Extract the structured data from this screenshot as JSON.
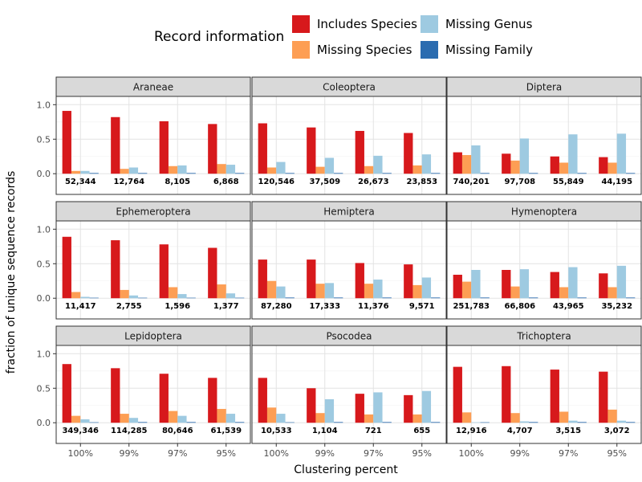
{
  "chart_data": {
    "type": "bar",
    "layout": "facet grid 3x3",
    "xlabel": "Clustering percent",
    "ylabel": "fraction of unique sequence records",
    "ylim": [
      -0.3,
      1.12
    ],
    "yticks": [
      0.0,
      0.5,
      1.0
    ],
    "y_tick_labels": [
      "0.0",
      "0.5",
      "1.0"
    ],
    "categories": [
      "100%",
      "99%",
      "97%",
      "95%"
    ],
    "legend": {
      "title": "Record information",
      "position": "top",
      "entries": [
        {
          "name": "Includes Species",
          "color": "#d7191c"
        },
        {
          "name": "Missing Genus",
          "color": "#9ecae1"
        },
        {
          "name": "Missing Species",
          "color": "#fd9e54"
        },
        {
          "name": "Missing Family",
          "color": "#2b6cb0"
        }
      ]
    },
    "series_order": [
      "Includes Species",
      "Missing Species",
      "Missing Genus",
      "Missing Family"
    ],
    "facets": [
      {
        "name": "Araneae",
        "values": {
          "Includes Species": [
            0.91,
            0.82,
            0.76,
            0.72
          ],
          "Missing Species": [
            0.04,
            0.07,
            0.11,
            0.14
          ],
          "Missing Genus": [
            0.04,
            0.09,
            0.12,
            0.13
          ],
          "Missing Family": [
            0.01,
            0.01,
            0.01,
            0.01
          ]
        },
        "counts": [
          "52,344",
          "12,764",
          "8,105",
          "6,868"
        ]
      },
      {
        "name": "Coleoptera",
        "values": {
          "Includes Species": [
            0.73,
            0.67,
            0.62,
            0.59
          ],
          "Missing Species": [
            0.09,
            0.1,
            0.11,
            0.12
          ],
          "Missing Genus": [
            0.17,
            0.23,
            0.26,
            0.28
          ],
          "Missing Family": [
            0.01,
            0.01,
            0.01,
            0.01
          ]
        },
        "counts": [
          "120,546",
          "37,509",
          "26,673",
          "23,853"
        ]
      },
      {
        "name": "Diptera",
        "values": {
          "Includes Species": [
            0.31,
            0.29,
            0.25,
            0.24
          ],
          "Missing Species": [
            0.27,
            0.19,
            0.16,
            0.16
          ],
          "Missing Genus": [
            0.41,
            0.51,
            0.57,
            0.58
          ],
          "Missing Family": [
            0.01,
            0.01,
            0.01,
            0.01
          ]
        },
        "counts": [
          "740,201",
          "97,708",
          "55,849",
          "44,195"
        ]
      },
      {
        "name": "Ephemeroptera",
        "values": {
          "Includes Species": [
            0.89,
            0.84,
            0.78,
            0.73
          ],
          "Missing Species": [
            0.09,
            0.12,
            0.16,
            0.2
          ],
          "Missing Genus": [
            0.02,
            0.04,
            0.06,
            0.07
          ],
          "Missing Family": [
            0.0,
            0.0,
            0.0,
            0.0
          ]
        },
        "counts": [
          "11,417",
          "2,755",
          "1,596",
          "1,377"
        ]
      },
      {
        "name": "Hemiptera",
        "values": {
          "Includes Species": [
            0.56,
            0.56,
            0.51,
            0.49
          ],
          "Missing Species": [
            0.25,
            0.21,
            0.21,
            0.19
          ],
          "Missing Genus": [
            0.17,
            0.22,
            0.27,
            0.3
          ],
          "Missing Family": [
            0.01,
            0.01,
            0.01,
            0.01
          ]
        },
        "counts": [
          "87,280",
          "17,333",
          "11,376",
          "9,571"
        ]
      },
      {
        "name": "Hymenoptera",
        "values": {
          "Includes Species": [
            0.34,
            0.41,
            0.38,
            0.36
          ],
          "Missing Species": [
            0.24,
            0.17,
            0.16,
            0.16
          ],
          "Missing Genus": [
            0.41,
            0.42,
            0.45,
            0.47
          ],
          "Missing Family": [
            0.01,
            0.01,
            0.01,
            0.01
          ]
        },
        "counts": [
          "251,783",
          "66,806",
          "43,965",
          "35,232"
        ]
      },
      {
        "name": "Lepidoptera",
        "values": {
          "Includes Species": [
            0.85,
            0.79,
            0.71,
            0.65
          ],
          "Missing Species": [
            0.1,
            0.13,
            0.17,
            0.2
          ],
          "Missing Genus": [
            0.05,
            0.07,
            0.1,
            0.13
          ],
          "Missing Family": [
            0.0,
            0.01,
            0.01,
            0.01
          ]
        },
        "counts": [
          "349,346",
          "114,285",
          "80,646",
          "61,539"
        ]
      },
      {
        "name": "Psocodea",
        "values": {
          "Includes Species": [
            0.65,
            0.5,
            0.42,
            0.4
          ],
          "Missing Species": [
            0.22,
            0.14,
            0.12,
            0.12
          ],
          "Missing Genus": [
            0.13,
            0.34,
            0.44,
            0.46
          ],
          "Missing Family": [
            0.0,
            0.01,
            0.01,
            0.01
          ]
        },
        "counts": [
          "10,533",
          "1,104",
          "721",
          "655"
        ]
      },
      {
        "name": "Trichoptera",
        "values": {
          "Includes Species": [
            0.81,
            0.82,
            0.77,
            0.74
          ],
          "Missing Species": [
            0.15,
            0.14,
            0.16,
            0.19
          ],
          "Missing Genus": [
            0.0,
            0.02,
            0.03,
            0.03
          ],
          "Missing Family": [
            0.0,
            0.01,
            0.01,
            0.01
          ]
        },
        "counts": [
          "12,916",
          "4,707",
          "3,515",
          "3,072"
        ]
      }
    ],
    "grid": true
  }
}
